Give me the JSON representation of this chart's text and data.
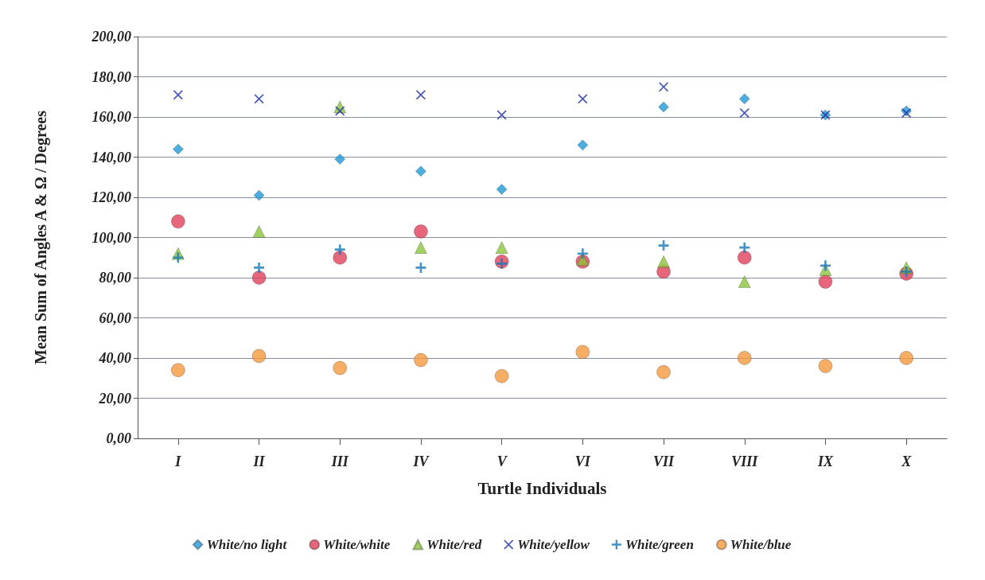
{
  "chart_data": {
    "type": "scatter",
    "xlabel": "Turtle Individuals",
    "ylabel": "Mean Sum of Angles A & Ω / Degrees",
    "categories": [
      "I",
      "II",
      "III",
      "IV",
      "V",
      "VI",
      "VII",
      "VIII",
      "IX",
      "X"
    ],
    "ylim": [
      0,
      200
    ],
    "yticks": [
      {
        "value": 0,
        "label": "0,00"
      },
      {
        "value": 20,
        "label": "20,00"
      },
      {
        "value": 40,
        "label": "40,00"
      },
      {
        "value": 60,
        "label": "60,00"
      },
      {
        "value": 80,
        "label": "80,00"
      },
      {
        "value": 100,
        "label": "100,00"
      },
      {
        "value": 120,
        "label": "120,00"
      },
      {
        "value": 140,
        "label": "140,00"
      },
      {
        "value": 160,
        "label": "160,00"
      },
      {
        "value": 180,
        "label": "180,00"
      },
      {
        "value": 200,
        "label": "200,00"
      }
    ],
    "grid": "y",
    "legend": "bottom",
    "series": [
      {
        "name": "White/no light",
        "color": "#1e9ad6",
        "marker": "diamond",
        "values": [
          144,
          121,
          139,
          133,
          124,
          146,
          165,
          169,
          161,
          163
        ]
      },
      {
        "name": "White/white",
        "color": "#e0405a",
        "marker": "circle",
        "values": [
          108,
          80,
          90,
          103,
          88,
          88,
          83,
          90,
          78,
          82
        ]
      },
      {
        "name": "White/red",
        "color": "#8cc43c",
        "marker": "triangle",
        "values": [
          92,
          103,
          165,
          95,
          95,
          89,
          88,
          78,
          84,
          85
        ]
      },
      {
        "name": "White/yellow",
        "color": "#1f2f9e",
        "marker": "cross",
        "values": [
          171,
          169,
          163,
          171,
          161,
          169,
          175,
          162,
          161,
          162
        ]
      },
      {
        "name": "White/green",
        "color": "#1677b8",
        "marker": "plus",
        "values": [
          90,
          85,
          94,
          85,
          87,
          92,
          96,
          95,
          86,
          83
        ]
      },
      {
        "name": "White/blue",
        "color": "#f39a3c",
        "marker": "circle",
        "values": [
          34,
          41,
          35,
          39,
          31,
          43,
          33,
          40,
          36,
          40
        ]
      }
    ]
  }
}
